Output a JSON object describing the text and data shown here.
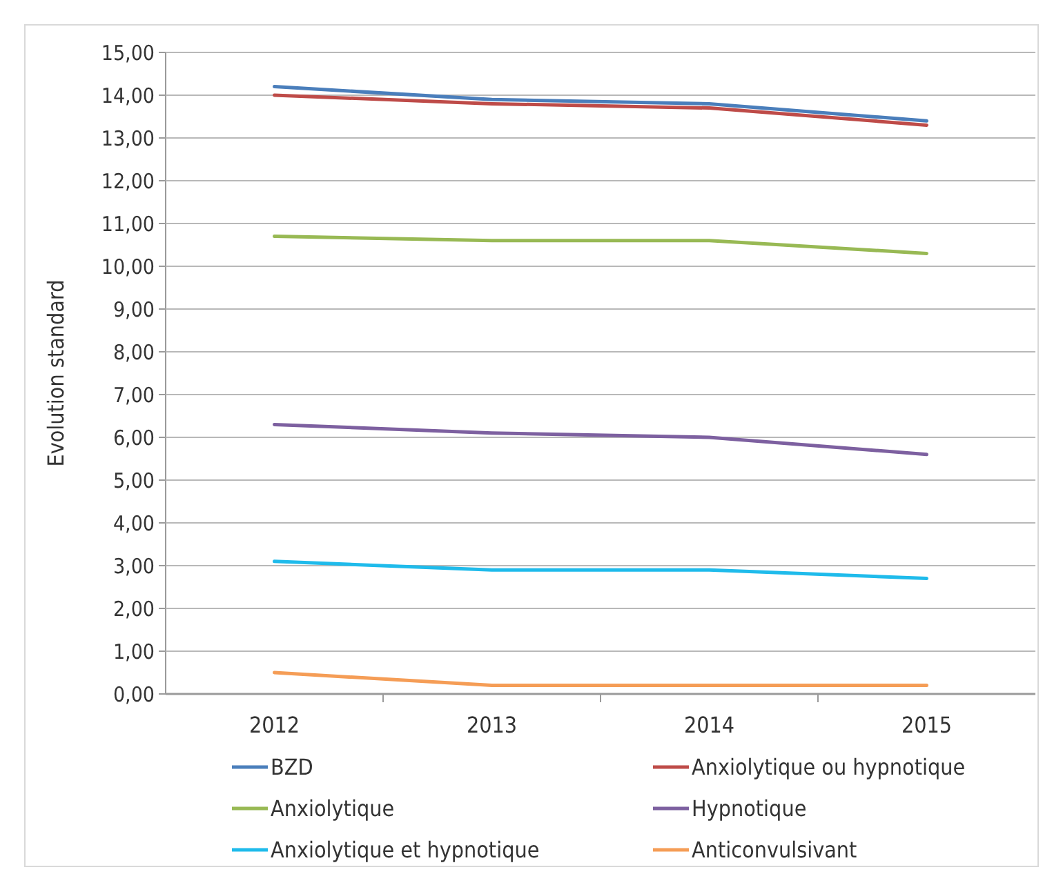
{
  "chart_data": {
    "type": "line",
    "ylabel": "Evolution standard",
    "categories": [
      "2012",
      "2013",
      "2014",
      "2015"
    ],
    "ylim": [
      0,
      15
    ],
    "yticks": [
      {
        "value": 0,
        "label": "0,00"
      },
      {
        "value": 1,
        "label": "1,00"
      },
      {
        "value": 2,
        "label": "2,00"
      },
      {
        "value": 3,
        "label": "3,00"
      },
      {
        "value": 4,
        "label": "4,00"
      },
      {
        "value": 5,
        "label": "5,00"
      },
      {
        "value": 6,
        "label": "6,00"
      },
      {
        "value": 7,
        "label": "7,00"
      },
      {
        "value": 8,
        "label": "8,00"
      },
      {
        "value": 9,
        "label": "9,00"
      },
      {
        "value": 10,
        "label": "10,00"
      },
      {
        "value": 11,
        "label": "11,00"
      },
      {
        "value": 12,
        "label": "12,00"
      },
      {
        "value": 13,
        "label": "13,00"
      },
      {
        "value": 14,
        "label": "14,00"
      },
      {
        "value": 15,
        "label": "15,00"
      }
    ],
    "grid": "y",
    "legend": "bottom",
    "series": [
      {
        "name": "BZD",
        "color": "#4a7ebb",
        "values": [
          14.2,
          13.9,
          13.8,
          13.4
        ]
      },
      {
        "name": "Anxiolytique ou hypnotique",
        "color": "#be4b48",
        "values": [
          14.0,
          13.8,
          13.7,
          13.3
        ]
      },
      {
        "name": "Anxiolytique",
        "color": "#98b954",
        "values": [
          10.7,
          10.6,
          10.6,
          10.3
        ]
      },
      {
        "name": "Hypnotique",
        "color": "#7d60a0",
        "values": [
          6.3,
          6.1,
          6.0,
          5.6
        ]
      },
      {
        "name": "Anxiolytique et hypnotique",
        "color": "#1fbbeb",
        "values": [
          3.1,
          2.9,
          2.9,
          2.7
        ]
      },
      {
        "name": "Anticonvulsivant",
        "color": "#f59d56",
        "values": [
          0.5,
          0.2,
          0.2,
          0.2
        ]
      }
    ]
  }
}
